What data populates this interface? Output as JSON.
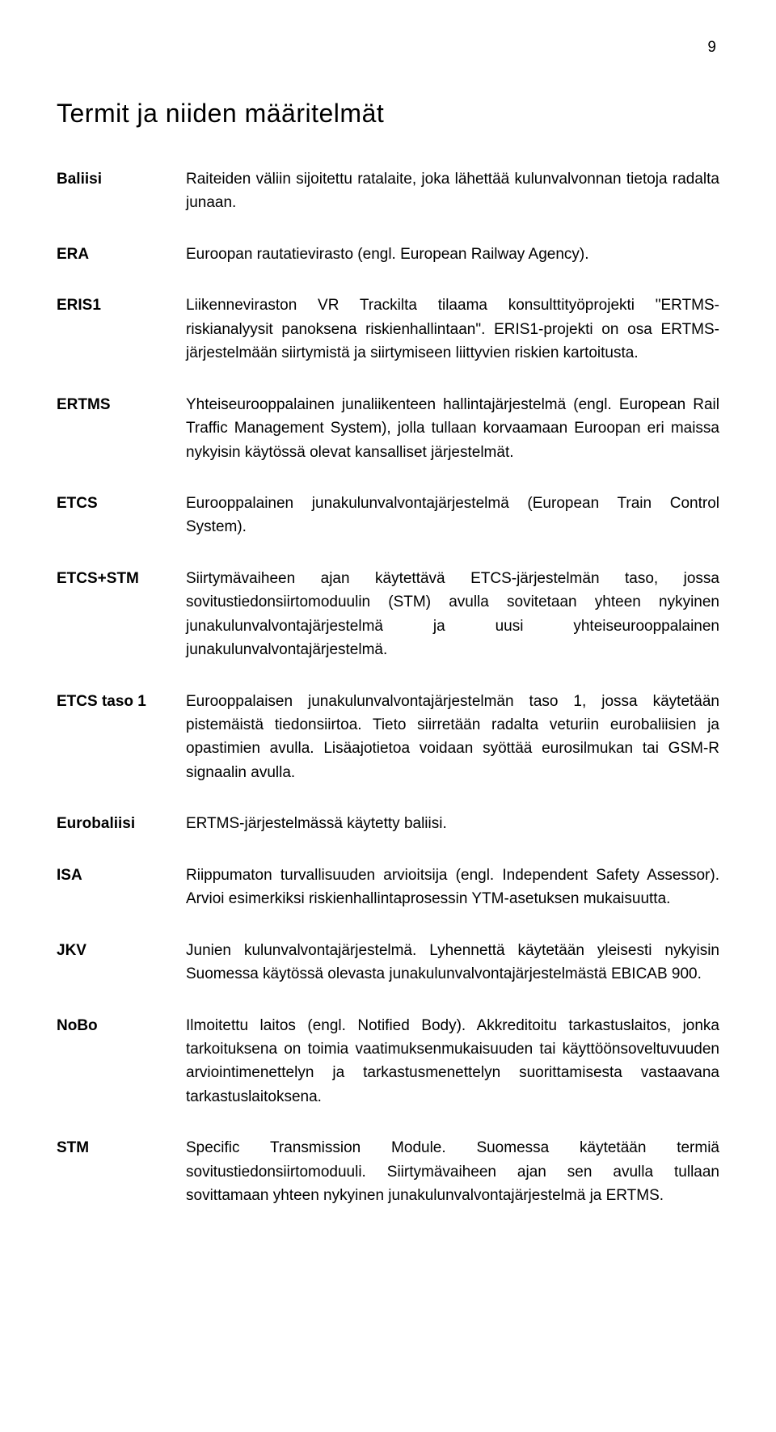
{
  "page_number": "9",
  "title": "Termit ja niiden määritelmät",
  "definitions": [
    {
      "term": "Baliisi",
      "description": "Raiteiden väliin sijoitettu ratalaite, joka lähettää kulunvalvonnan tietoja radalta junaan."
    },
    {
      "term": "ERA",
      "description": "Euroopan rautatievirasto (engl. European Railway Agency)."
    },
    {
      "term": "ERIS1",
      "description": "Liikenneviraston VR Trackilta tilaama konsulttityöprojekti \"ERTMS-riskianalyysit panoksena riskienhallintaan\". ERIS1-projekti on osa ERTMS-järjestelmään siirtymistä ja siirtymiseen liittyvien riskien kartoitusta."
    },
    {
      "term": "ERTMS",
      "description": "Yhteiseurooppalainen junaliikenteen hallintajärjestelmä (engl. European Rail Traffic Management System), jolla tullaan korvaamaan Euroopan eri maissa nykyisin käytössä olevat kansalliset järjestelmät."
    },
    {
      "term": "ETCS",
      "description": "Eurooppalainen junakulunvalvontajärjestelmä (European Train Control System)."
    },
    {
      "term": "ETCS+STM",
      "description": "Siirtymävaiheen ajan käytettävä ETCS-järjestelmän taso, jossa sovitustiedonsiirtomoduulin (STM) avulla sovitetaan yhteen nykyinen junakulunvalvontajärjestelmä ja uusi yhteiseurooppalainen junakulunvalvontajärjestelmä."
    },
    {
      "term": "ETCS taso 1",
      "description": "Eurooppalaisen junakulunvalvontajärjestelmän taso 1, jossa käytetään pistemäistä tiedonsiirtoa. Tieto siirretään radalta veturiin eurobaliisien ja opastimien avulla. Lisäajotietoa voidaan syöttää eurosilmukan tai GSM-R signaalin avulla."
    },
    {
      "term": "Eurobaliisi",
      "description": "ERTMS-järjestelmässä käytetty baliisi."
    },
    {
      "term": "ISA",
      "description": "Riippumaton turvallisuuden arvioitsija (engl. Independent Safety Assessor). Arvioi esimerkiksi riskienhallintaprosessin YTM-asetuksen mukaisuutta."
    },
    {
      "term": "JKV",
      "description": "Junien kulunvalvontajärjestelmä. Lyhennettä käytetään yleisesti nykyisin Suomessa käytössä olevasta junakulunvalvontajärjestelmästä EBICAB 900."
    },
    {
      "term": "NoBo",
      "description": "Ilmoitettu laitos (engl. Notified Body). Akkreditoitu tarkastuslaitos, jonka tarkoituksena on toimia vaatimuksenmukaisuuden tai käyttöönsoveltuvuuden arviointimenettelyn ja tarkastusmenettelyn suorittamisesta vastaavana tarkastuslaitoksena."
    },
    {
      "term": "STM",
      "description": "Specific Transmission Module. Suomessa käytetään termiä sovitustiedonsiirtomoduuli. Siirtymävaiheen ajan sen avulla tullaan sovittamaan yhteen nykyinen junakulunvalvontajärjestelmä ja ERTMS."
    }
  ]
}
